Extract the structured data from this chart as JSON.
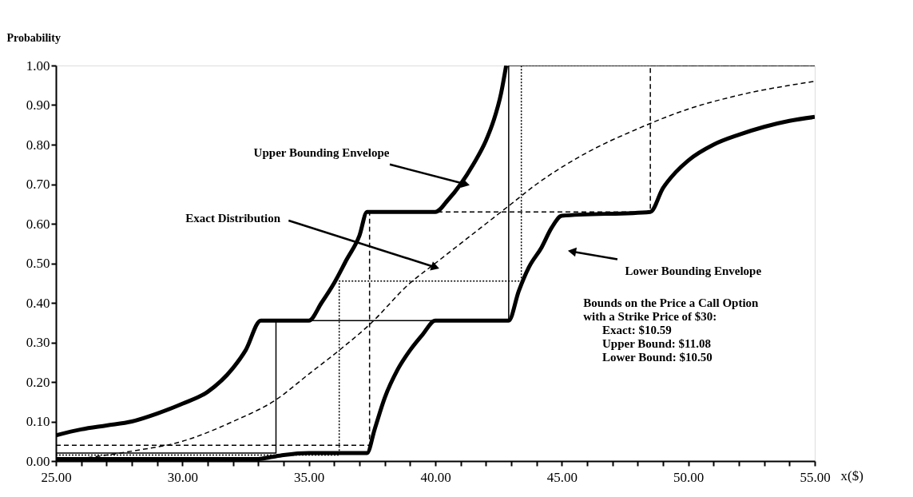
{
  "chart_data": {
    "type": "line",
    "xlabel": "x($)",
    "ylabel": "Probability",
    "xlim": [
      25,
      55
    ],
    "ylim": [
      0,
      1
    ],
    "xticks": [
      {
        "value": 25,
        "label": "25.00"
      },
      {
        "value": 26,
        "label": null
      },
      {
        "value": 27,
        "label": null
      },
      {
        "value": 28,
        "label": null
      },
      {
        "value": 29,
        "label": null
      },
      {
        "value": 30,
        "label": "30.00"
      },
      {
        "value": 31,
        "label": null
      },
      {
        "value": 32,
        "label": null
      },
      {
        "value": 33,
        "label": null
      },
      {
        "value": 34,
        "label": null
      },
      {
        "value": 35,
        "label": "35.00"
      },
      {
        "value": 36,
        "label": null
      },
      {
        "value": 37,
        "label": null
      },
      {
        "value": 38,
        "label": null
      },
      {
        "value": 39,
        "label": null
      },
      {
        "value": 40,
        "label": "40.00"
      },
      {
        "value": 41,
        "label": null
      },
      {
        "value": 42,
        "label": null
      },
      {
        "value": 43,
        "label": null
      },
      {
        "value": 44,
        "label": null
      },
      {
        "value": 45,
        "label": "45.00"
      },
      {
        "value": 46,
        "label": null
      },
      {
        "value": 47,
        "label": null
      },
      {
        "value": 48,
        "label": null
      },
      {
        "value": 49,
        "label": null
      },
      {
        "value": 50,
        "label": "50.00"
      },
      {
        "value": 51,
        "label": null
      },
      {
        "value": 52,
        "label": null
      },
      {
        "value": 53,
        "label": null
      },
      {
        "value": 54,
        "label": null
      },
      {
        "value": 55,
        "label": "55.00"
      }
    ],
    "yticks": [
      {
        "value": 0,
        "label": "0.00"
      },
      {
        "value": 0.1,
        "label": "0.10"
      },
      {
        "value": 0.2,
        "label": "0.20"
      },
      {
        "value": 0.3,
        "label": "0.30"
      },
      {
        "value": 0.4,
        "label": "0.40"
      },
      {
        "value": 0.5,
        "label": "0.50"
      },
      {
        "value": 0.6,
        "label": "0.60"
      },
      {
        "value": 0.7,
        "label": "0.70"
      },
      {
        "value": 0.8,
        "label": "0.80"
      },
      {
        "value": 0.9,
        "label": "0.90"
      },
      {
        "value": 1,
        "label": "1.00"
      }
    ],
    "grid": false,
    "legend": false,
    "series": [
      {
        "type": "line",
        "color": "#000000",
        "line_style": "solid",
        "x": [
          25,
          26,
          27,
          28,
          29,
          30,
          31,
          32,
          32.5,
          33.1,
          35.0,
          35.5,
          36,
          36.5,
          37,
          37.3,
          40.0,
          40.5,
          41,
          41.5,
          42,
          42.3,
          42.6,
          42.8
        ],
        "values": [
          0.065,
          0.08,
          0.09,
          0.1,
          0.12,
          0.145,
          0.175,
          0.235,
          0.28,
          0.355,
          0.355,
          0.4,
          0.45,
          0.51,
          0.57,
          0.63,
          0.63,
          0.66,
          0.7,
          0.75,
          0.81,
          0.86,
          0.93,
          1.0
        ]
      },
      {
        "type": "line",
        "color": "#000000",
        "line_style": "solid",
        "x": [
          25,
          33,
          33.5,
          34,
          35,
          37.3,
          37.6,
          38,
          38.5,
          39,
          39.5,
          40,
          42.9,
          43.3,
          43.7,
          44.2,
          44.6,
          45,
          48.5,
          49,
          49.5,
          50,
          51,
          52,
          53,
          54,
          55
        ],
        "values": [
          0.005,
          0.005,
          0.01,
          0.015,
          0.02,
          0.02,
          0.08,
          0.16,
          0.23,
          0.28,
          0.32,
          0.355,
          0.355,
          0.43,
          0.49,
          0.54,
          0.59,
          0.62,
          0.63,
          0.69,
          0.73,
          0.76,
          0.8,
          0.825,
          0.845,
          0.86,
          0.87
        ]
      },
      {
        "type": "line",
        "color": "#000000",
        "line_style": "dashed",
        "x": [
          25,
          27,
          28,
          30,
          32,
          33.7,
          35,
          36.2,
          37.4,
          39,
          40,
          42,
          43,
          44,
          46,
          48,
          50,
          52,
          55
        ],
        "values": [
          0.0,
          0.015,
          0.025,
          0.05,
          0.1,
          0.155,
          0.22,
          0.28,
          0.345,
          0.45,
          0.5,
          0.6,
          0.65,
          0.7,
          0.78,
          0.84,
          0.89,
          0.925,
          0.96
        ]
      },
      {
        "type": "step",
        "color": "#000000",
        "line_style": "solid",
        "x": [
          25,
          33.7,
          42.9,
          55
        ],
        "values": [
          0.02,
          0.355,
          1.0,
          1.0
        ]
      },
      {
        "type": "step",
        "color": "#000000",
        "line_style": "dashed",
        "x": [
          25,
          37.4,
          48.5,
          55
        ],
        "values": [
          0.04,
          0.63,
          1.0,
          1.0
        ]
      },
      {
        "type": "step",
        "color": "#000000",
        "line_style": "dotted",
        "x": [
          25,
          36.2,
          43.4,
          55
        ],
        "values": [
          0.015,
          0.455,
          1.0,
          1.0
        ]
      }
    ],
    "annotations": [
      {
        "text": "Upper Bounding Envelope",
        "x": 41.2,
        "y": 0.7
      },
      {
        "text": "Exact Distribution",
        "x": 40.0,
        "y": 0.49
      },
      {
        "text": "Lower Bounding Envelope",
        "x": 45.4,
        "y": 0.53
      },
      "Bounds on the Price a Call Option",
      "with a Strike Price of $30:",
      "Exact:              $10.59",
      "Upper Bound: $11.08",
      "Lower Bound: $10.50"
    ]
  }
}
